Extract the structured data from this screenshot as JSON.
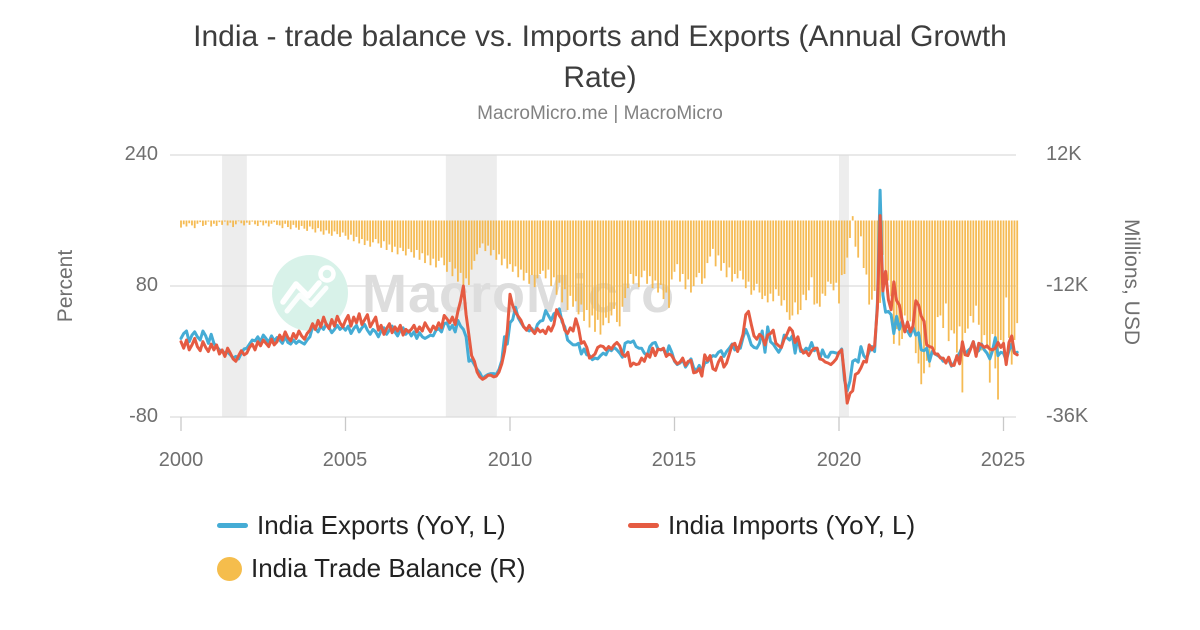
{
  "header": {
    "title_lines": [
      "India - trade balance vs. Imports and Exports (Annual Growth",
      "Rate)"
    ],
    "subtitle": "MacroMicro.me | MacroMicro"
  },
  "watermark": {
    "text": "MacroMicro",
    "circle_color": "#D8F2E9",
    "text_color": "#DDDDDD",
    "glyph": "mountain-trend-logo"
  },
  "axes": {
    "left": {
      "label": "Percent",
      "ticks": [
        {
          "value": 240,
          "label": "240"
        },
        {
          "value": 80,
          "label": "80"
        },
        {
          "value": -80,
          "label": "-80"
        }
      ]
    },
    "right": {
      "label": "Millions, USD",
      "ticks": [
        {
          "value": 12000,
          "label": "12K"
        },
        {
          "value": -12000,
          "label": "-12K"
        },
        {
          "value": -36000,
          "label": "-36K"
        }
      ]
    },
    "x": {
      "ticks": [
        {
          "value": 2000,
          "label": "2000"
        },
        {
          "value": 2005,
          "label": "2005"
        },
        {
          "value": 2010,
          "label": "2010"
        },
        {
          "value": 2015,
          "label": "2015"
        },
        {
          "value": 2020,
          "label": "2020"
        },
        {
          "value": 2025,
          "label": "2025"
        }
      ]
    }
  },
  "legend": [
    {
      "label": "India Exports (YoY, L)",
      "type": "line",
      "color": "#45ACD5"
    },
    {
      "label": "India Imports (YoY, L)",
      "type": "line",
      "color": "#E55B42"
    },
    {
      "label": "India Trade Balance (R)",
      "type": "circle",
      "color": "#F5BD4C"
    }
  ],
  "chart_data": {
    "type": "mixed",
    "title": "India - trade balance vs. Imports and Exports (Annual Growth Rate)",
    "subtitle": "MacroMicro.me | MacroMicro",
    "freq": "monthly",
    "start": "2000-01",
    "end": "2025-06",
    "x_range": [
      2000,
      2025.5
    ],
    "left_axis": {
      "label": "Percent",
      "unit": "%",
      "gridlines": [
        240,
        80,
        -80
      ],
      "range": [
        -100,
        260
      ]
    },
    "right_axis": {
      "label": "Millions, USD",
      "unit": "USD millions",
      "gridlines": [
        12000,
        -12000,
        -36000
      ],
      "range": [
        -40000,
        16000
      ]
    },
    "recession_bands": [
      [
        2001.25,
        2002.0
      ],
      [
        2008.05,
        2009.6
      ],
      [
        2020.0,
        2020.3
      ]
    ],
    "grid": "horizontal-only",
    "legend_position": "bottom-left",
    "series": [
      {
        "name": "India Exports (YoY, L)",
        "type": "line",
        "axis": "left",
        "unit": "%",
        "color": "#45ACD5",
        "values": [
          16,
          22,
          25,
          12,
          20,
          24,
          18,
          14,
          25,
          19,
          10,
          21,
          10,
          6,
          2,
          1,
          -2,
          -1,
          -4,
          -8,
          -6,
          -9,
          -2,
          3,
          4,
          9,
          14,
          13,
          18,
          12,
          20,
          16,
          11,
          19,
          13,
          17,
          14,
          10,
          18,
          11,
          9,
          14,
          10,
          13,
          11,
          9,
          14,
          18,
          30,
          28,
          24,
          31,
          27,
          34,
          29,
          23,
          27,
          32,
          27,
          30,
          26,
          31,
          22,
          28,
          32,
          24,
          29,
          33,
          26,
          21,
          27,
          24,
          18,
          25,
          29,
          21,
          26,
          31,
          24,
          19,
          26,
          29,
          21,
          25,
          19,
          24,
          16,
          23,
          18,
          16,
          18,
          20,
          19,
          26,
          28,
          24,
          34,
          35,
          27,
          32,
          24,
          38,
          31,
          27,
          18,
          -12,
          -10,
          -16,
          -22,
          -26,
          -33,
          -30,
          -28,
          -27,
          -27,
          -28,
          -22,
          -11,
          18,
          9,
          35,
          39,
          54,
          41,
          35,
          30,
          27,
          25,
          28,
          23,
          33,
          37,
          38,
          50,
          44,
          38,
          46,
          48,
          52,
          36,
          30,
          14,
          11,
          8,
          8,
          10,
          -3,
          3,
          -4,
          -5,
          -10,
          -8,
          -9,
          -5,
          -2,
          -4,
          3,
          1,
          5,
          2,
          -2,
          -7,
          10,
          12,
          11,
          13,
          6,
          4,
          4,
          -2,
          -5,
          6,
          10,
          11,
          3,
          2,
          3,
          -5,
          7,
          -1,
          -12,
          -16,
          -14,
          -10,
          -19,
          -14,
          -9,
          -20,
          -24,
          -17,
          -24,
          -14,
          -13,
          -8,
          -5,
          -6,
          -1,
          1,
          -6,
          0,
          4,
          9,
          2,
          5,
          4,
          17,
          27,
          19,
          8,
          5,
          4,
          10,
          25,
          -1,
          30,
          12,
          9,
          4,
          -1,
          5,
          20,
          17,
          14,
          19,
          -2,
          17,
          0,
          0,
          4,
          2,
          11,
          1,
          4,
          -9,
          2,
          -6,
          -7,
          -1,
          -1,
          -2,
          -2,
          3,
          -35,
          -48,
          -36,
          -12,
          -10,
          -13,
          6,
          -5,
          -9,
          0,
          6,
          0,
          60,
          197,
          69,
          48,
          49,
          45,
          22,
          43,
          27,
          38,
          25,
          25,
          19,
          30,
          20,
          23,
          2,
          1,
          4,
          -12,
          0,
          -3,
          -5,
          -7,
          -12,
          -12,
          -10,
          -18,
          -14,
          -7,
          -2,
          6,
          -3,
          1,
          4,
          12,
          -1,
          1,
          9,
          2,
          -2,
          -9,
          1,
          17,
          -5,
          -1,
          -2,
          -11,
          1,
          9,
          -2,
          -1
        ]
      },
      {
        "name": "India Imports (YoY, L)",
        "type": "line",
        "axis": "left",
        "unit": "%",
        "color": "#E55B42",
        "values": [
          12,
          4,
          14,
          2,
          8,
          16,
          6,
          1,
          12,
          5,
          0,
          9,
          2,
          8,
          -3,
          2,
          -6,
          4,
          -2,
          -9,
          -12,
          -5,
          1,
          -4,
          -2,
          5,
          9,
          2,
          12,
          7,
          14,
          10,
          6,
          15,
          8,
          12,
          20,
          14,
          24,
          17,
          13,
          22,
          16,
          25,
          19,
          15,
          22,
          26,
          34,
          27,
          38,
          30,
          42,
          33,
          28,
          39,
          31,
          43,
          35,
          30,
          38,
          44,
          31,
          42,
          35,
          46,
          33,
          39,
          45,
          30,
          36,
          42,
          26,
          32,
          21,
          28,
          34,
          23,
          30,
          25,
          32,
          20,
          27,
          24,
          27,
          32,
          24,
          30,
          25,
          35,
          29,
          24,
          31,
          27,
          35,
          29,
          44,
          40,
          35,
          42,
          33,
          49,
          62,
          80,
          45,
          20,
          -5,
          -12,
          -25,
          -31,
          -34,
          -32,
          -29,
          -29,
          -31,
          -30,
          -25,
          -15,
          0,
          25,
          70,
          56,
          48,
          43,
          38,
          30,
          26,
          32,
          26,
          22,
          28,
          24,
          26,
          22,
          30,
          25,
          33,
          51,
          44,
          39,
          26,
          22,
          29,
          25,
          40,
          29,
          10,
          12,
          5,
          -8,
          -6,
          -3,
          5,
          7,
          6,
          2,
          6,
          3,
          8,
          11,
          7,
          -3,
          -6,
          -1,
          -18,
          -14,
          -16,
          -15,
          -8,
          -12,
          -3,
          -7,
          4,
          -5,
          3,
          2,
          4,
          -6,
          -3,
          -5,
          -11,
          -15,
          -13,
          -8,
          -17,
          -12,
          -11,
          -26,
          -25,
          -21,
          -30,
          -4,
          -11,
          -5,
          -21,
          -23,
          -13,
          -7,
          -19,
          -14,
          -3,
          8,
          10,
          0,
          10,
          21,
          45,
          49,
          33,
          19,
          15,
          21,
          18,
          8,
          20,
          22,
          26,
          10,
          7,
          5,
          15,
          21,
          29,
          25,
          11,
          18,
          4,
          -2,
          0,
          -5,
          1,
          4,
          4,
          -9,
          -10,
          -13,
          -14,
          -16,
          -13,
          -9,
          -1,
          2,
          -29,
          -63,
          -51,
          -48,
          -28,
          -26,
          -20,
          -12,
          -13,
          8,
          2,
          7,
          53,
          166,
          74,
          98,
          63,
          51,
          85,
          62,
          57,
          38,
          24,
          36,
          24,
          31,
          62,
          57,
          43,
          37,
          8,
          6,
          5,
          -3,
          -3,
          -8,
          -8,
          -14,
          -7,
          -17,
          -17,
          -5,
          -15,
          12,
          -4,
          -5,
          3,
          12,
          -6,
          10,
          8,
          5,
          7,
          3,
          2,
          4,
          11,
          5,
          10,
          -16,
          11,
          19,
          -2,
          -4
        ]
      },
      {
        "name": "India Trade Balance (R)",
        "type": "bar",
        "axis": "right",
        "unit": "USD millions",
        "color": "#F4B545",
        "values": [
          -1300,
          -700,
          -1100,
          -500,
          -900,
          -1400,
          -600,
          -300,
          -1000,
          -800,
          -200,
          -1100,
          -600,
          -1000,
          -300,
          -800,
          -200,
          -900,
          -400,
          -1200,
          -700,
          -100,
          -500,
          -900,
          -400,
          -800,
          -200,
          -700,
          -1000,
          -300,
          -900,
          -500,
          -1100,
          -600,
          -300,
          -800,
          -900,
          -1400,
          -600,
          -1200,
          -1600,
          -800,
          -1300,
          -1700,
          -1000,
          -1500,
          -1900,
          -1100,
          -1600,
          -2200,
          -1400,
          -2000,
          -2600,
          -1800,
          -2400,
          -2800,
          -2000,
          -2500,
          -3000,
          -2200,
          -2800,
          -3500,
          -2600,
          -3800,
          -3000,
          -4200,
          -3400,
          -4500,
          -3700,
          -4800,
          -4000,
          -3400,
          -4200,
          -5000,
          -3800,
          -5400,
          -4400,
          -5800,
          -4800,
          -6200,
          -5000,
          -5600,
          -6400,
          -5200,
          -5800,
          -6800,
          -5400,
          -7200,
          -6000,
          -7800,
          -6400,
          -8200,
          -7000,
          -8600,
          -7400,
          -6800,
          -8200,
          -9400,
          -7600,
          -10200,
          -8800,
          -11200,
          -9600,
          -12400,
          -10600,
          -11800,
          -9000,
          -7400,
          -6200,
          -5000,
          -4200,
          -5600,
          -4600,
          -6400,
          -5400,
          -7200,
          -6200,
          -8200,
          -7000,
          -8800,
          -8000,
          -9400,
          -8400,
          -10400,
          -9000,
          -11000,
          -9600,
          -11600,
          -10000,
          -12200,
          -10600,
          -9800,
          -9200,
          -10600,
          -9000,
          -12000,
          -10400,
          -13600,
          -11400,
          -15000,
          -12600,
          -16400,
          -13800,
          -15800,
          -14800,
          -17200,
          -15400,
          -18400,
          -16400,
          -19600,
          -17400,
          -20400,
          -18200,
          -20900,
          -19200,
          -17800,
          -18800,
          -17400,
          -16200,
          -18600,
          -19400,
          -15800,
          -14200,
          -12400,
          -9800,
          -11600,
          -10200,
          -12200,
          -10400,
          -9200,
          -11600,
          -10200,
          -12400,
          -11000,
          -13200,
          -11800,
          -14400,
          -13200,
          -16000,
          -10800,
          -9400,
          -8000,
          -11200,
          -9800,
          -12600,
          -10800,
          -13200,
          -12000,
          -10400,
          -9600,
          -11600,
          -10600,
          -7800,
          -6600,
          -5200,
          -8400,
          -6400,
          -9200,
          -7800,
          -10400,
          -8600,
          -11200,
          -9800,
          -10600,
          -9200,
          -10800,
          -12400,
          -11200,
          -13600,
          -12800,
          -11600,
          -13200,
          -14400,
          -13800,
          -15000,
          -13400,
          -14800,
          -12600,
          -13800,
          -15600,
          -14600,
          -16800,
          -18200,
          -17400,
          -15000,
          -17200,
          -16400,
          -13600,
          -14600,
          -12800,
          -10400,
          -15400,
          -15200,
          -15800,
          -13400,
          -13800,
          -11200,
          -11600,
          -12800,
          -11400,
          -15200,
          -10000,
          -9800,
          -6800,
          -3200,
          800,
          -4800,
          -6800,
          -2900,
          -8700,
          -9900,
          -15400,
          -14500,
          -12900,
          -14100,
          -15100,
          -6300,
          -9400,
          -11000,
          -13900,
          -22600,
          -19900,
          -22900,
          -21700,
          -17400,
          -18700,
          -18500,
          -20100,
          -24300,
          -26200,
          -30000,
          -28000,
          -25700,
          -26900,
          -23000,
          -23800,
          -17700,
          -17400,
          -19700,
          -15200,
          -22100,
          -20100,
          -20700,
          -24200,
          -19400,
          -31500,
          -20600,
          -19800,
          -17500,
          -18700,
          -15600,
          -19100,
          -23800,
          -21000,
          -23500,
          -29700,
          -20800,
          -27100,
          -32800,
          -21900,
          -23000,
          -14100,
          -21500,
          -26400,
          -21900,
          -18800
        ]
      }
    ],
    "style": {
      "band_color": "#EDEDED",
      "gridline_color": "#DCDCDC",
      "tick_color": "#C9C9C9",
      "line_width": 3
    }
  }
}
